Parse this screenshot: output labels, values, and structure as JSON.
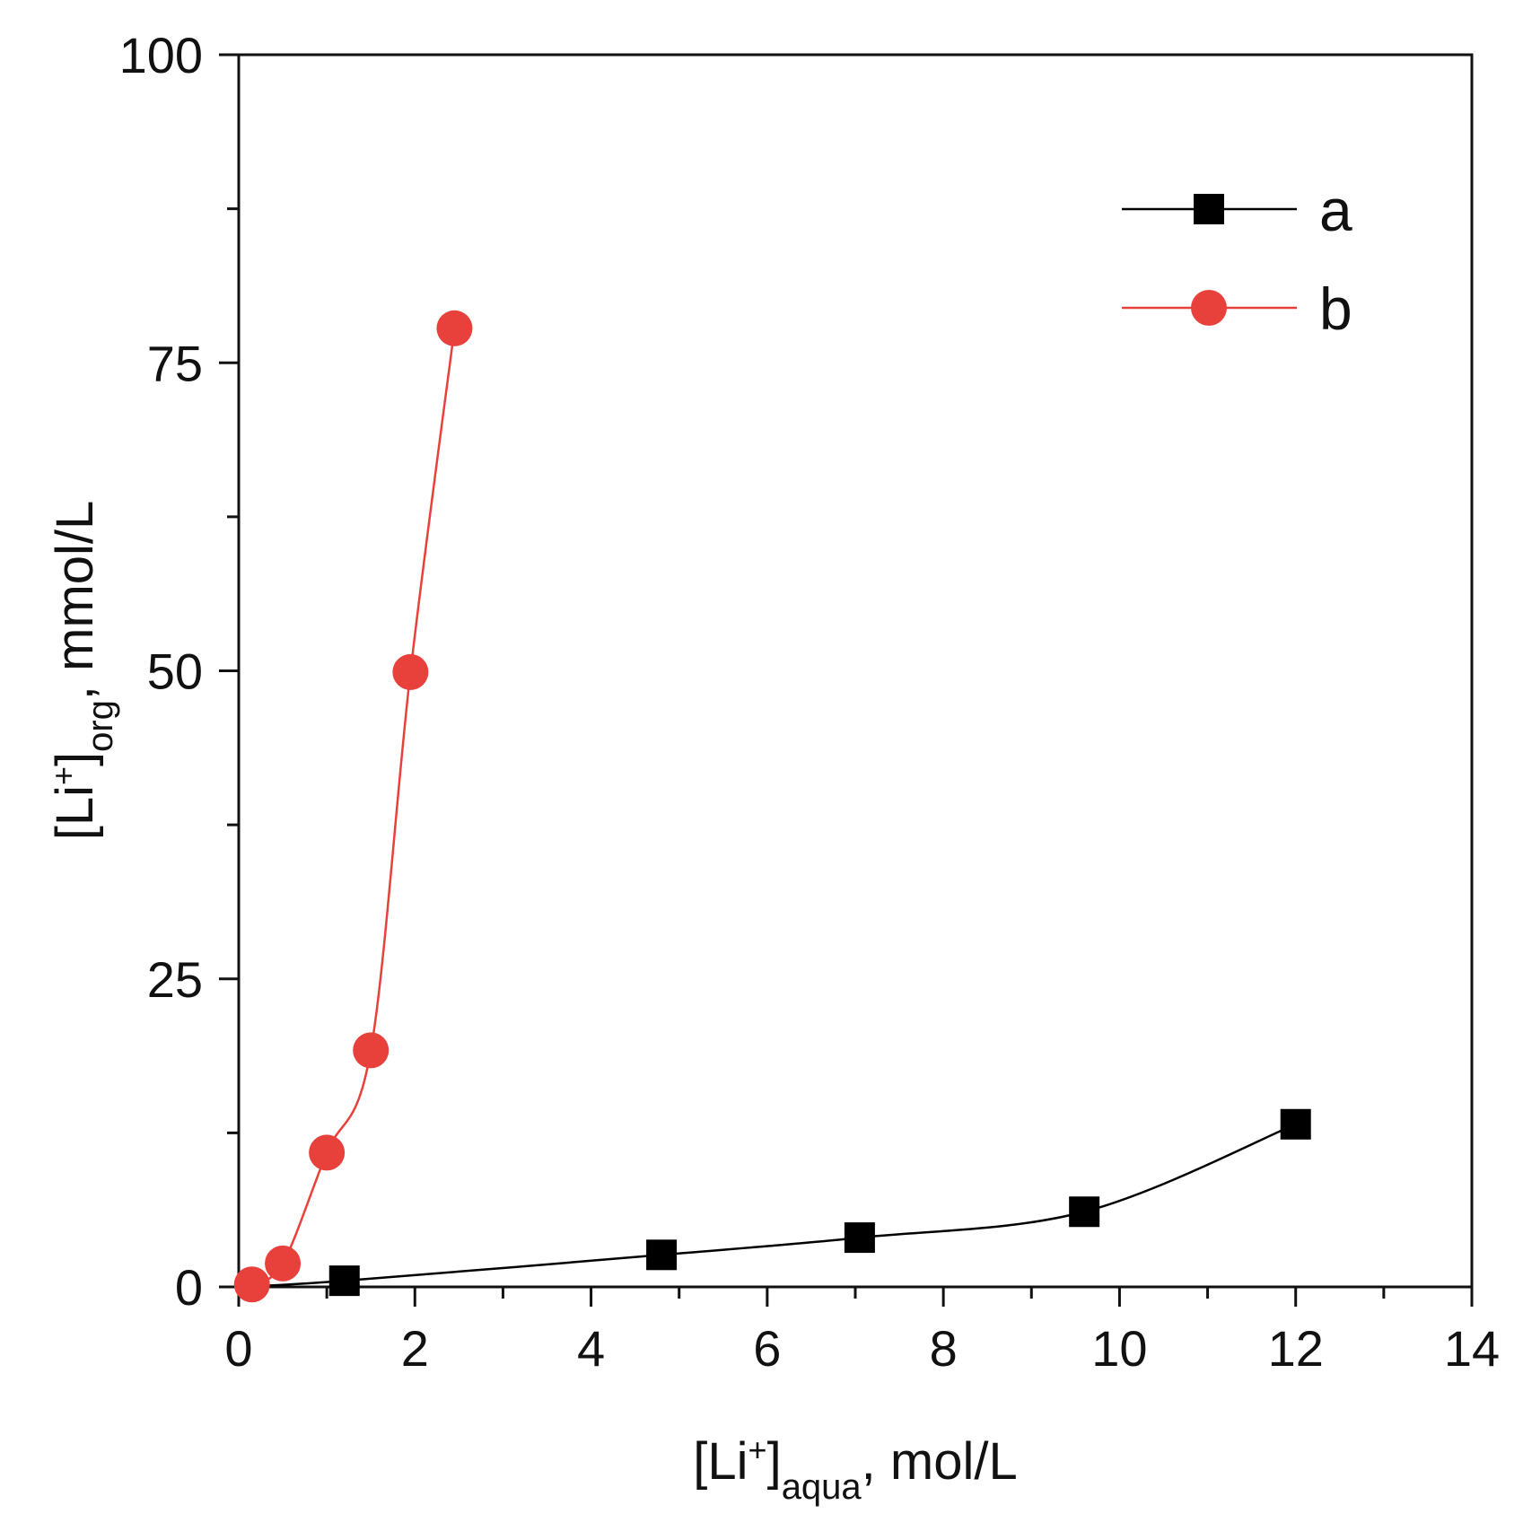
{
  "chart_data": {
    "type": "line",
    "xlabel": {
      "main": "[Li",
      "sup": "+",
      "close": "]",
      "sub": "aqua",
      "unit": ", mol/L"
    },
    "ylabel": {
      "main": "[Li",
      "sup": "+",
      "close": "]",
      "sub": "org",
      "unit": ", mmol/L"
    },
    "xlim": [
      0,
      14
    ],
    "ylim": [
      0,
      100
    ],
    "x_ticks": [
      0,
      2,
      4,
      6,
      8,
      10,
      12,
      14
    ],
    "y_ticks": [
      0,
      25,
      50,
      75,
      100
    ],
    "x_minor_ticks": [
      1,
      3,
      5,
      7,
      9,
      11,
      13
    ],
    "y_minor_ticks": [
      12.5,
      37.5,
      62.5,
      87.5
    ],
    "grid": false,
    "legend_position": "top-right",
    "series": [
      {
        "name": "a",
        "marker": "square",
        "color": "#000000",
        "x": [
          1.2,
          4.8,
          7.05,
          9.6,
          12.0
        ],
        "y": [
          0.5,
          2.6,
          4.0,
          6.1,
          13.2
        ]
      },
      {
        "name": "b",
        "marker": "circle",
        "color": "#e8413c",
        "x": [
          0.15,
          0.5,
          1.0,
          1.5,
          1.95,
          2.45
        ],
        "y": [
          0.2,
          1.9,
          10.9,
          19.2,
          49.9,
          77.8
        ]
      }
    ]
  }
}
